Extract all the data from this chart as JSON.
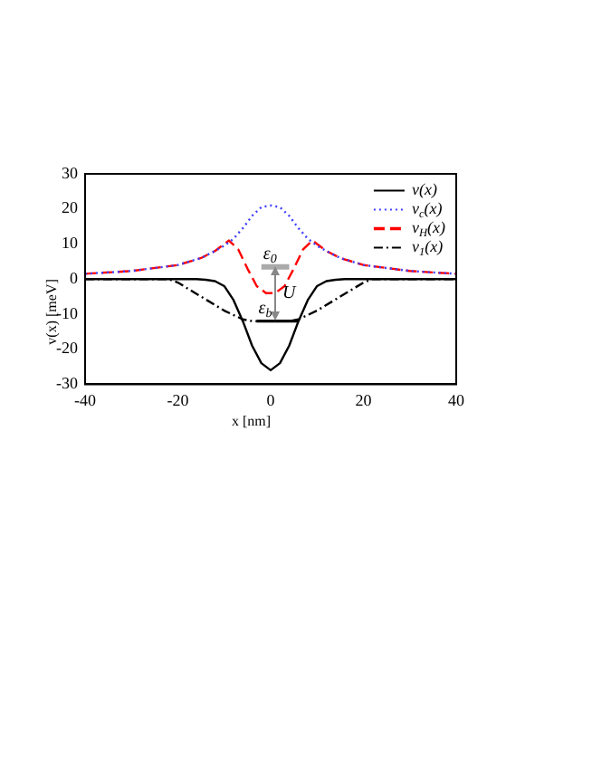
{
  "chart_data": {
    "type": "line",
    "xlabel": "x [nm]",
    "ylabel": "v(x) [meV]",
    "xlim": [
      -40,
      40
    ],
    "xticks": [
      -40,
      -20,
      0,
      20,
      40
    ],
    "ylim": [
      -30,
      30
    ],
    "yticks": [
      -30,
      -20,
      -10,
      0,
      10,
      20,
      30
    ],
    "grid": false,
    "legend": "top right",
    "marker": "none",
    "series": [
      {
        "name": "v(x)",
        "color": "#000000",
        "line_style": "solid",
        "x": [
          -40,
          -16,
          -14,
          -12,
          -10,
          -8,
          -6,
          -4,
          -2,
          0,
          2,
          4,
          6,
          8,
          10,
          12,
          14,
          16,
          40
        ],
        "values": [
          0,
          0,
          -0.2,
          -0.6,
          -2,
          -6,
          -12,
          -19,
          -24,
          -26,
          -24,
          -19,
          -12,
          -6,
          -2,
          -0.6,
          -0.2,
          0,
          0
        ]
      },
      {
        "name": "v$_{c}$(x)",
        "color": "#4040ff",
        "line_style": "dotted",
        "x": [
          -40,
          -30,
          -20,
          -15,
          -12,
          -10,
          -8,
          -6,
          -4,
          -2,
          0,
          2,
          4,
          6,
          8,
          10,
          12,
          15,
          20,
          30,
          40
        ],
        "values": [
          1.5,
          2.3,
          4,
          6,
          8,
          9.5,
          11.5,
          14.5,
          18,
          20.5,
          21,
          20.5,
          18,
          14.5,
          11.5,
          9.5,
          8,
          6,
          4,
          2.3,
          1.5
        ]
      },
      {
        "name": "v$_{H}$(x)",
        "color": "#ff0000",
        "line_style": "dashed",
        "x": [
          -40,
          -30,
          -20,
          -15,
          -12,
          -10,
          -9,
          -7,
          -5,
          -3,
          -1,
          0,
          1,
          3,
          5,
          7,
          9,
          10,
          12,
          15,
          20,
          30,
          40
        ],
        "values": [
          1.5,
          2.3,
          4,
          6,
          8,
          10,
          11,
          8.5,
          3,
          -2,
          -4,
          -4,
          -4,
          -2,
          3,
          8.5,
          11,
          10,
          8,
          6,
          4,
          2.3,
          1.5
        ]
      },
      {
        "name": "v$_{1}$(x)",
        "color": "#000000",
        "line_style": "dashdot",
        "x": [
          -40,
          -22,
          -20,
          -15,
          -10,
          -6,
          -4,
          0,
          4,
          6,
          10,
          15,
          20,
          22,
          40
        ],
        "values": [
          0,
          0,
          -1,
          -5,
          -9,
          -11.5,
          -12,
          -12,
          -12,
          -11.5,
          -9,
          -5,
          -1,
          0,
          0
        ]
      },
      {
        "color": "#aaaaaa",
        "line_style": "solid",
        "x": [
          -2,
          4
        ],
        "values": [
          3.5,
          3.5
        ]
      },
      {
        "color": "#000000",
        "line_style": "solid",
        "x": [
          -3,
          6
        ],
        "values": [
          -12,
          -12
        ]
      }
    ],
    "annotations": [
      {
        "text": "ε$_{0}$",
        "x": -2,
        "y": 3.5
      },
      {
        "text": "U",
        "x": 1,
        "y": -4
      },
      {
        "text": "ε$_{b}$",
        "x": -3,
        "y": -12
      }
    ]
  }
}
